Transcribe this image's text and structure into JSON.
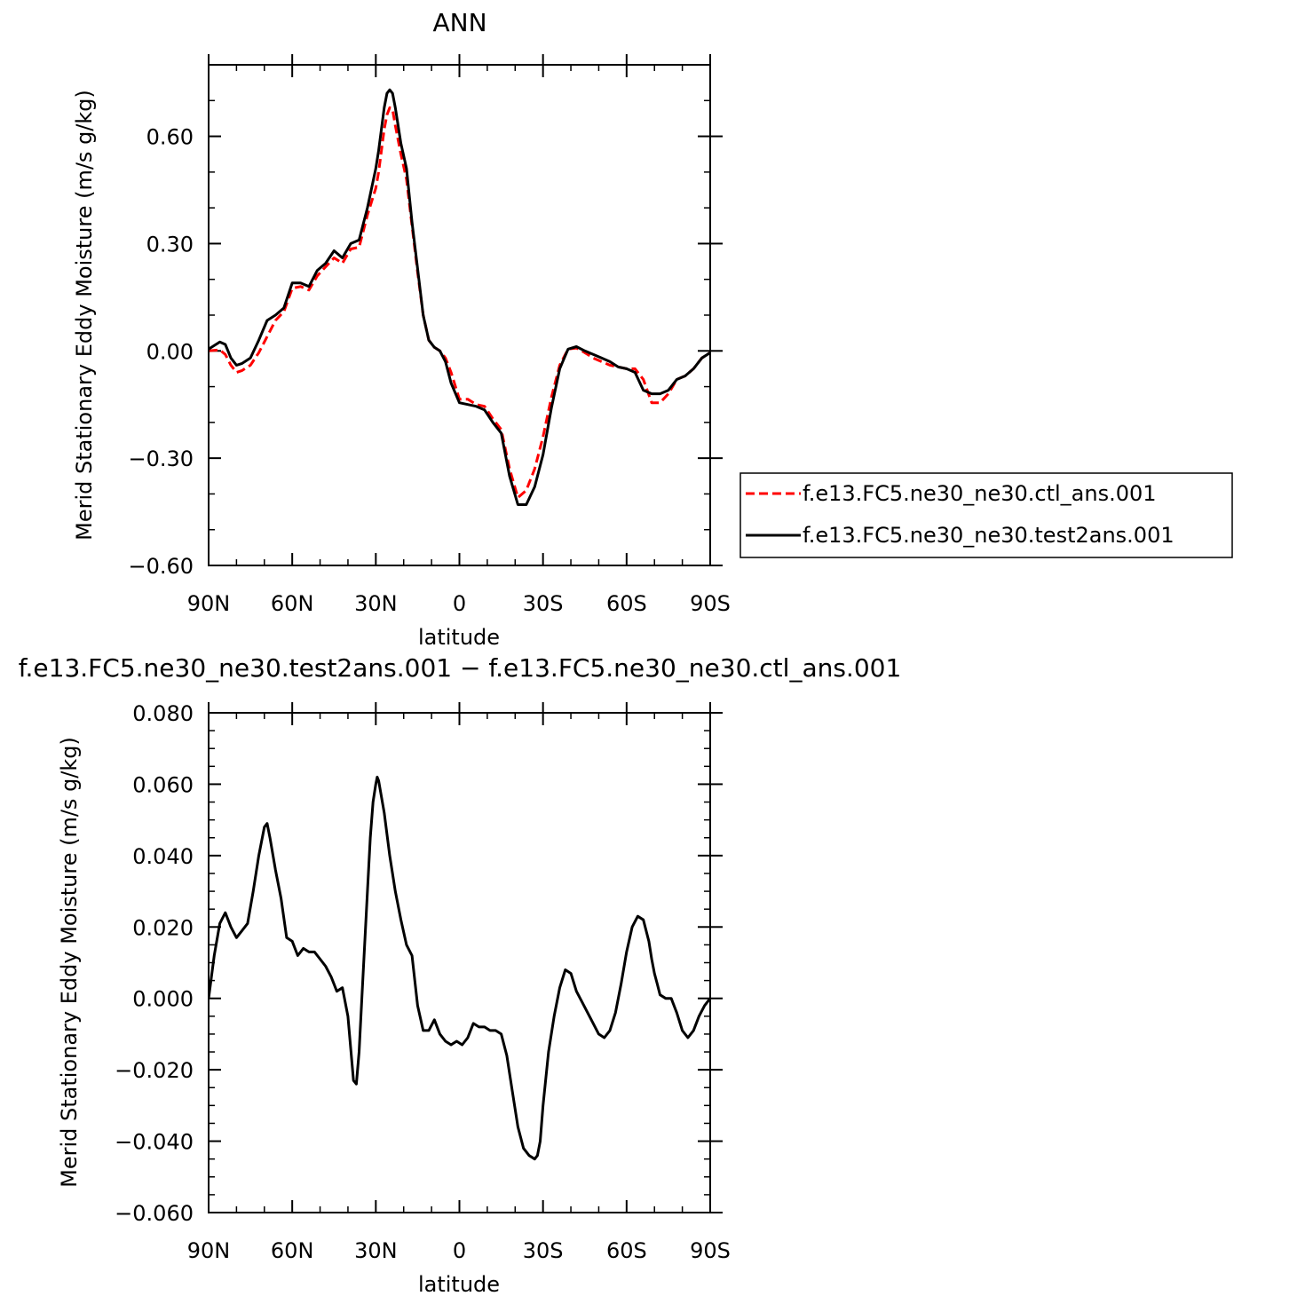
{
  "chart_data": [
    {
      "type": "line",
      "title": "ANN",
      "xlabel": "latitude",
      "ylabel": "Merid Stationary Eddy Moisture (m/s g/kg)",
      "xlim": [
        90,
        -90
      ],
      "ylim": [
        -0.6,
        0.8
      ],
      "x_ticks": [
        90,
        60,
        30,
        0,
        -30,
        -60,
        -90
      ],
      "x_tick_labels": [
        "90N",
        "60N",
        "30N",
        "0",
        "30S",
        "60S",
        "90S"
      ],
      "y_ticks": [
        -0.6,
        -0.3,
        0.0,
        0.3,
        0.6
      ],
      "y_tick_labels": [
        "−0.60",
        "−0.30",
        "0.00",
        "0.30",
        "0.60"
      ],
      "y_minor_step": 0.1,
      "legend_position": "right",
      "series": [
        {
          "name": "f.e13.FC5.ne30_ne30.ctl_ans.001",
          "color": "#ff0000",
          "dash": "dashed",
          "x": [
            90,
            86,
            84,
            82,
            80,
            78,
            75,
            72,
            69,
            66,
            63,
            60,
            57,
            54,
            51,
            48,
            45,
            42,
            39,
            36,
            33,
            30,
            29,
            27,
            26,
            25,
            24,
            23,
            21,
            19,
            17,
            15,
            13,
            11,
            9,
            7,
            5,
            3,
            0,
            -3,
            -6,
            -9,
            -12,
            -15,
            -18,
            -21,
            -24,
            -27,
            -30,
            -33,
            -36,
            -39,
            -42,
            -45,
            -48,
            -51,
            -54,
            -57,
            -60,
            -63,
            -66,
            -69,
            -72,
            -75,
            -78,
            -81,
            -84,
            -87,
            -90
          ],
          "y": [
            0.0,
            0.003,
            -0.01,
            -0.04,
            -0.06,
            -0.055,
            -0.04,
            -0.005,
            0.04,
            0.085,
            0.11,
            0.175,
            0.18,
            0.17,
            0.21,
            0.235,
            0.26,
            0.245,
            0.285,
            0.29,
            0.38,
            0.455,
            0.5,
            0.62,
            0.66,
            0.68,
            0.675,
            0.63,
            0.55,
            0.48,
            0.35,
            0.22,
            0.1,
            0.03,
            0.01,
            0.0,
            -0.02,
            -0.06,
            -0.135,
            -0.135,
            -0.15,
            -0.155,
            -0.19,
            -0.22,
            -0.33,
            -0.41,
            -0.39,
            -0.33,
            -0.24,
            -0.13,
            -0.04,
            0.005,
            0.008,
            -0.005,
            -0.02,
            -0.03,
            -0.04,
            -0.045,
            -0.05,
            -0.05,
            -0.08,
            -0.145,
            -0.145,
            -0.12,
            -0.08,
            -0.07,
            -0.05,
            -0.02,
            -0.005
          ]
        },
        {
          "name": "f.e13.FC5.ne30_ne30.test2ans.001",
          "color": "#000000",
          "dash": "solid",
          "x": [
            90,
            86,
            84,
            82,
            80,
            78,
            75,
            72,
            69,
            66,
            63,
            60,
            57,
            54,
            51,
            48,
            45,
            42,
            39,
            36,
            33,
            30,
            29,
            27,
            26,
            25,
            24,
            23,
            21,
            19,
            17,
            15,
            13,
            11,
            9,
            7,
            5,
            3,
            0,
            -3,
            -6,
            -9,
            -12,
            -15,
            -18,
            -21,
            -24,
            -27,
            -30,
            -33,
            -36,
            -39,
            -42,
            -45,
            -48,
            -51,
            -54,
            -57,
            -60,
            -63,
            -66,
            -69,
            -72,
            -75,
            -78,
            -81,
            -84,
            -87,
            -90
          ],
          "y": [
            0.005,
            0.025,
            0.018,
            -0.02,
            -0.04,
            -0.035,
            -0.02,
            0.03,
            0.085,
            0.1,
            0.12,
            0.19,
            0.19,
            0.18,
            0.225,
            0.245,
            0.28,
            0.26,
            0.3,
            0.31,
            0.4,
            0.51,
            0.56,
            0.68,
            0.72,
            0.73,
            0.72,
            0.68,
            0.58,
            0.51,
            0.36,
            0.23,
            0.1,
            0.03,
            0.01,
            0.0,
            -0.03,
            -0.09,
            -0.145,
            -0.15,
            -0.155,
            -0.165,
            -0.2,
            -0.23,
            -0.35,
            -0.43,
            -0.43,
            -0.38,
            -0.29,
            -0.16,
            -0.05,
            0.005,
            0.012,
            0.0,
            -0.01,
            -0.02,
            -0.03,
            -0.045,
            -0.05,
            -0.06,
            -0.11,
            -0.12,
            -0.12,
            -0.11,
            -0.08,
            -0.07,
            -0.05,
            -0.02,
            -0.005
          ]
        }
      ]
    },
    {
      "type": "line",
      "title": "f.e13.FC5.ne30_ne30.test2ans.001 − f.e13.FC5.ne30_ne30.ctl_ans.001",
      "xlabel": "latitude",
      "ylabel": "Merid Stationary Eddy Moisture (m/s g/kg)",
      "xlim": [
        90,
        -90
      ],
      "ylim": [
        -0.06,
        0.08
      ],
      "x_ticks": [
        90,
        60,
        30,
        0,
        -30,
        -60,
        -90
      ],
      "x_tick_labels": [
        "90N",
        "60N",
        "30N",
        "0",
        "30S",
        "60S",
        "90S"
      ],
      "y_ticks": [
        -0.06,
        -0.04,
        -0.02,
        0.0,
        0.02,
        0.04,
        0.06,
        0.08
      ],
      "y_tick_labels": [
        "−0.060",
        "−0.040",
        "−0.020",
        "0.000",
        "0.020",
        "0.040",
        "0.060",
        "0.080"
      ],
      "y_minor_step": 0.005,
      "series": [
        {
          "color": "#000000",
          "dash": "solid",
          "x": [
            90,
            88,
            86,
            84,
            82,
            80,
            78,
            76,
            74,
            72,
            70,
            69,
            68,
            66,
            64,
            62,
            60,
            58,
            56,
            54,
            52,
            50,
            48,
            46,
            44,
            42,
            40,
            38,
            37,
            36,
            35,
            33,
            32,
            31,
            30,
            29.5,
            29,
            27,
            25,
            23,
            21,
            19,
            17,
            15,
            13,
            11,
            9,
            7,
            5,
            3,
            1,
            -1,
            -3,
            -5,
            -7,
            -9,
            -11,
            -13,
            -15,
            -17,
            -19,
            -21,
            -23,
            -25,
            -27,
            -28,
            -29,
            -30,
            -32,
            -34,
            -36,
            -38,
            -40,
            -42,
            -44,
            -46,
            -48,
            -50,
            -52,
            -54,
            -56,
            -58,
            -60,
            -62,
            -64,
            -66,
            -68,
            -69,
            -70,
            -71,
            -72,
            -74,
            -76,
            -78,
            -80,
            -82,
            -84,
            -86,
            -88,
            -90
          ],
          "y": [
            0.0,
            0.012,
            0.021,
            0.024,
            0.02,
            0.017,
            0.019,
            0.021,
            0.03,
            0.04,
            0.048,
            0.049,
            0.045,
            0.036,
            0.028,
            0.017,
            0.016,
            0.012,
            0.014,
            0.013,
            0.013,
            0.011,
            0.009,
            0.006,
            0.002,
            0.003,
            -0.005,
            -0.023,
            -0.024,
            -0.015,
            0.0,
            0.03,
            0.045,
            0.055,
            0.06,
            0.062,
            0.061,
            0.052,
            0.04,
            0.03,
            0.022,
            0.015,
            0.012,
            -0.002,
            -0.009,
            -0.009,
            -0.006,
            -0.01,
            -0.012,
            -0.013,
            -0.012,
            -0.013,
            -0.011,
            -0.007,
            -0.008,
            -0.008,
            -0.009,
            -0.009,
            -0.01,
            -0.016,
            -0.026,
            -0.036,
            -0.042,
            -0.044,
            -0.045,
            -0.044,
            -0.04,
            -0.03,
            -0.015,
            -0.005,
            0.003,
            0.008,
            0.007,
            0.002,
            -0.001,
            -0.004,
            -0.007,
            -0.01,
            -0.011,
            -0.009,
            -0.004,
            0.004,
            0.013,
            0.02,
            0.023,
            0.022,
            0.016,
            0.011,
            0.007,
            0.004,
            0.001,
            0.0,
            0.0,
            -0.004,
            -0.009,
            -0.011,
            -0.009,
            -0.005,
            -0.002,
            0.0
          ]
        }
      ]
    }
  ]
}
